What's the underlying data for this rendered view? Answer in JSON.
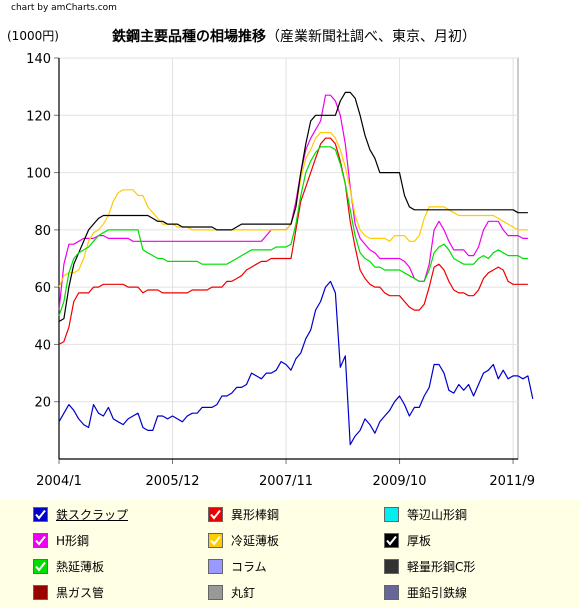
{
  "credit": "chart by amCharts.com",
  "chart_data": {
    "type": "line",
    "title": "鉄鋼主要品種の相場推移",
    "subtitle": "（産業新聞社調べ、東京、月初）",
    "ylabel": "(1000円)",
    "ylim": [
      0,
      140
    ],
    "yticks": [
      20,
      40,
      60,
      80,
      100,
      120,
      140
    ],
    "xlim": [
      0,
      93
    ],
    "xticks": [
      {
        "label": "2004/1",
        "x": 0
      },
      {
        "label": "2005/12",
        "x": 23
      },
      {
        "label": "2007/11",
        "x": 46
      },
      {
        "label": "2009/10",
        "x": 69
      },
      {
        "label": "2011/9",
        "x": 92
      }
    ],
    "grid": true,
    "series": [
      {
        "name": "鉄スクラップ",
        "color": "#0000cc",
        "visible": true,
        "underline": true,
        "values": [
          13,
          16,
          19,
          17,
          14,
          12,
          11,
          19,
          16,
          15,
          18,
          14,
          13,
          12,
          14,
          15,
          16,
          11,
          10,
          10,
          15,
          15,
          14,
          15,
          14,
          13,
          15,
          16,
          16,
          18,
          18,
          18,
          19,
          22,
          22,
          23,
          25,
          25,
          26,
          30,
          29,
          28,
          30,
          30,
          31,
          34,
          33,
          31,
          35,
          37,
          42,
          45,
          52,
          55,
          60,
          62,
          58,
          32,
          36,
          5,
          8,
          10,
          14,
          12,
          9,
          13,
          15,
          17,
          20,
          22,
          19,
          15,
          18,
          18,
          22,
          25,
          33,
          33,
          30,
          24,
          23,
          26,
          24,
          26,
          22,
          26,
          30,
          31,
          33,
          28,
          31,
          28,
          29,
          29,
          28,
          29,
          21
        ]
      },
      {
        "name": "異形棒鋼",
        "color": "#ee0000",
        "visible": true,
        "values": [
          40,
          41,
          46,
          55,
          58,
          58,
          58,
          60,
          60,
          61,
          61,
          61,
          61,
          61,
          60,
          60,
          60,
          58,
          59,
          59,
          59,
          58,
          58,
          58,
          58,
          58,
          58,
          59,
          59,
          59,
          59,
          60,
          60,
          60,
          62,
          62,
          63,
          64,
          66,
          67,
          68,
          69,
          69,
          70,
          70,
          70,
          70,
          70,
          80,
          90,
          95,
          100,
          105,
          110,
          112,
          112,
          110,
          104,
          96,
          83,
          74,
          66,
          63,
          61,
          60,
          60,
          58,
          57,
          57,
          57,
          55,
          53,
          52,
          52,
          54,
          60,
          67,
          68,
          66,
          62,
          59,
          58,
          58,
          57,
          57,
          59,
          63,
          65,
          66,
          67,
          66,
          62,
          61,
          61,
          61,
          61
        ]
      },
      {
        "name": "等辺山形鋼",
        "color": "#00eeee",
        "visible": false,
        "values": []
      },
      {
        "name": "H形鋼",
        "color": "#ee00ee",
        "visible": true,
        "values": [
          52,
          68,
          75,
          75,
          76,
          77,
          77,
          77,
          78,
          78,
          77,
          77,
          77,
          77,
          77,
          76,
          76,
          76,
          76,
          76,
          76,
          76,
          76,
          76,
          76,
          76,
          76,
          76,
          76,
          76,
          76,
          76,
          76,
          76,
          76,
          76,
          76,
          76,
          76,
          76,
          76,
          76,
          78,
          80,
          80,
          80,
          80,
          82,
          90,
          100,
          108,
          112,
          115,
          118,
          127,
          127,
          125,
          120,
          110,
          95,
          82,
          77,
          75,
          73,
          72,
          70,
          70,
          70,
          70,
          70,
          69,
          67,
          63,
          62,
          62,
          68,
          80,
          83,
          80,
          76,
          73,
          73,
          73,
          71,
          71,
          74,
          80,
          83,
          83,
          83,
          80,
          78,
          78,
          78,
          77,
          77
        ]
      },
      {
        "name": "冷延薄板",
        "color": "#ffcc00",
        "visible": true,
        "values": [
          60,
          64,
          65,
          65,
          66,
          70,
          76,
          79,
          80,
          82,
          85,
          90,
          93,
          94,
          94,
          94,
          92,
          92,
          88,
          86,
          84,
          82,
          82,
          82,
          81,
          81,
          81,
          80,
          80,
          80,
          80,
          80,
          80,
          80,
          80,
          80,
          80,
          80,
          80,
          80,
          80,
          80,
          80,
          80,
          80,
          80,
          80,
          82,
          88,
          98,
          105,
          108,
          112,
          114,
          114,
          114,
          112,
          108,
          102,
          94,
          85,
          80,
          78,
          77,
          77,
          77,
          77,
          76,
          78,
          78,
          78,
          76,
          76,
          78,
          84,
          88,
          88,
          88,
          88,
          87,
          86,
          85,
          85,
          85,
          85,
          85,
          85,
          85,
          85,
          84,
          83,
          82,
          81,
          80,
          80,
          80
        ]
      },
      {
        "name": "厚板",
        "color": "#000000",
        "visible": true,
        "values": [
          48,
          49,
          60,
          68,
          72,
          76,
          80,
          82,
          84,
          85,
          85,
          85,
          85,
          85,
          85,
          85,
          85,
          85,
          85,
          84,
          83,
          83,
          82,
          82,
          82,
          81,
          81,
          81,
          81,
          81,
          81,
          81,
          80,
          80,
          80,
          80,
          81,
          82,
          82,
          82,
          82,
          82,
          82,
          82,
          82,
          82,
          82,
          82,
          88,
          100,
          110,
          118,
          120,
          120,
          120,
          120,
          120,
          125,
          128,
          128,
          126,
          120,
          113,
          108,
          105,
          100,
          100,
          100,
          100,
          100,
          92,
          88,
          87,
          87,
          87,
          87,
          87,
          87,
          87,
          87,
          87,
          87,
          87,
          87,
          87,
          87,
          87,
          87,
          87,
          87,
          87,
          87,
          87,
          86,
          86,
          86
        ]
      },
      {
        "name": "熱延薄板",
        "color": "#00dd00",
        "visible": true,
        "values": [
          50,
          55,
          65,
          70,
          72,
          73,
          74,
          76,
          78,
          79,
          80,
          80,
          80,
          80,
          80,
          80,
          80,
          73,
          72,
          71,
          70,
          70,
          69,
          69,
          69,
          69,
          69,
          69,
          69,
          68,
          68,
          68,
          68,
          68,
          68,
          69,
          70,
          71,
          72,
          73,
          73,
          73,
          73,
          73,
          74,
          74,
          74,
          75,
          82,
          92,
          100,
          104,
          107,
          109,
          109,
          109,
          108,
          103,
          96,
          87,
          78,
          72,
          70,
          69,
          67,
          67,
          66,
          66,
          66,
          66,
          65,
          64,
          63,
          62,
          62,
          66,
          72,
          74,
          75,
          73,
          70,
          69,
          68,
          68,
          68,
          70,
          71,
          70,
          72,
          73,
          72,
          71,
          71,
          71,
          70,
          70
        ]
      },
      {
        "name": "コラム",
        "color": "#9999ff",
        "visible": false,
        "values": []
      },
      {
        "name": "軽量形鋼C形",
        "color": "#333333",
        "visible": false,
        "values": []
      },
      {
        "name": "黒ガス管",
        "color": "#990000",
        "visible": false,
        "values": []
      },
      {
        "name": "丸釘",
        "color": "#999999",
        "visible": false,
        "values": []
      },
      {
        "name": "亜鉛引鉄線",
        "color": "#666699",
        "visible": false,
        "values": []
      }
    ]
  }
}
